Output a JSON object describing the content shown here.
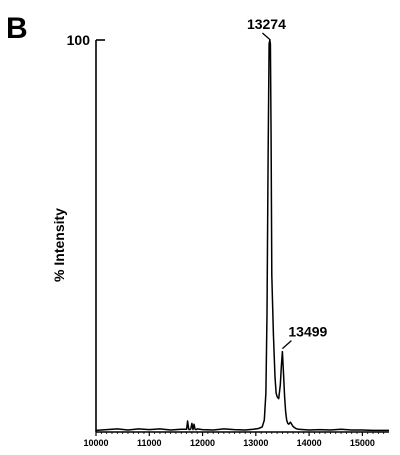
{
  "panel_label": "B",
  "chart_data": {
    "type": "line",
    "ylabel": "% Intensity",
    "xlim": [
      10000,
      15500
    ],
    "ylim": [
      0,
      100
    ],
    "y_ticks": [
      100
    ],
    "x_ticks": [
      10000,
      11000,
      12000,
      13000,
      14000,
      15000
    ],
    "annotations": [
      {
        "text": "13274",
        "x": 13274,
        "y": 100
      },
      {
        "text": "13499",
        "x": 13499,
        "y": 20.5
      }
    ],
    "series": [
      {
        "x": [
          10000,
          10200,
          10400,
          10600,
          10800,
          11000,
          11200,
          11400,
          11600,
          11700,
          11720,
          11740,
          11760,
          11780,
          11800,
          11820,
          11840,
          11860,
          11880,
          11900,
          11950,
          12000,
          12200,
          12400,
          12600,
          12800,
          12950,
          13050,
          13120,
          13160,
          13190,
          13210,
          13230,
          13250,
          13262,
          13274,
          13286,
          13300,
          13330,
          13360,
          13380,
          13400,
          13430,
          13460,
          13480,
          13499,
          13520,
          13540,
          13560,
          13580,
          13600,
          13620,
          13650,
          13700,
          13750,
          13800,
          14000,
          14200,
          14400,
          14600,
          14800,
          15000,
          15200,
          15500
        ],
        "y": [
          0.4,
          0.6,
          0.8,
          0.5,
          0.8,
          0.6,
          0.8,
          0.5,
          0.7,
          0.7,
          2.8,
          0.7,
          0.6,
          0.8,
          2.2,
          0.6,
          2.0,
          0.7,
          0.6,
          0.8,
          0.7,
          0.6,
          0.5,
          0.8,
          0.6,
          0.5,
          0.7,
          0.9,
          1.3,
          3.0,
          10.0,
          30.0,
          70.0,
          99.0,
          100.0,
          99.0,
          75.0,
          40.0,
          25.0,
          14.0,
          10.0,
          9.0,
          8.5,
          12.0,
          17.0,
          20.5,
          15.0,
          9.0,
          5.0,
          3.0,
          2.2,
          2.0,
          2.5,
          1.4,
          0.9,
          0.7,
          0.5,
          0.6,
          0.5,
          0.7,
          0.5,
          0.5,
          0.4,
          0.4
        ]
      }
    ]
  }
}
